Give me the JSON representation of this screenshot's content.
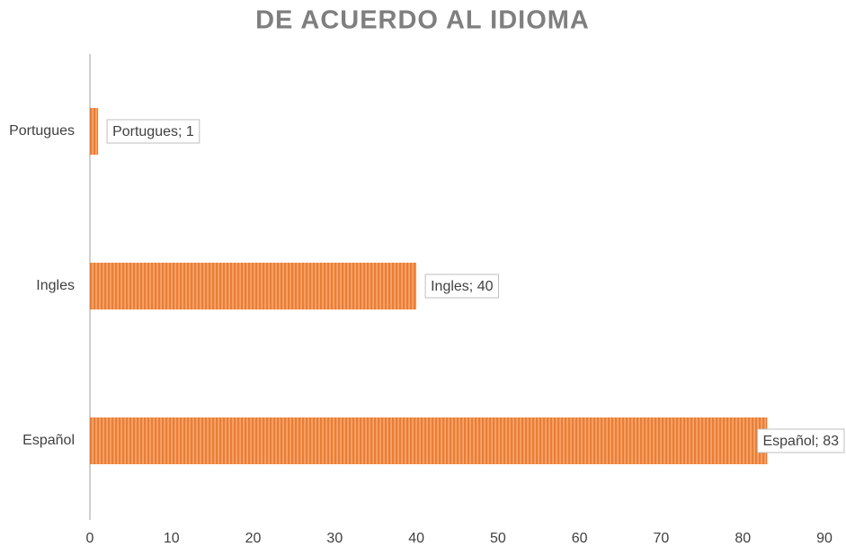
{
  "chart_data": {
    "type": "bar",
    "orientation": "horizontal",
    "title": "DE ACUERDO AL IDIOMA",
    "categories": [
      "Español",
      "Ingles",
      "Portugues"
    ],
    "values": [
      83,
      40,
      1
    ],
    "value_labels": [
      "Español; 83",
      "Ingles; 40",
      "Portugues; 1"
    ],
    "color": "#ed7d31",
    "xlim": [
      0,
      90
    ],
    "xticks": [
      0,
      10,
      20,
      30,
      40,
      50,
      60,
      70,
      80,
      90
    ],
    "grid": false
  }
}
